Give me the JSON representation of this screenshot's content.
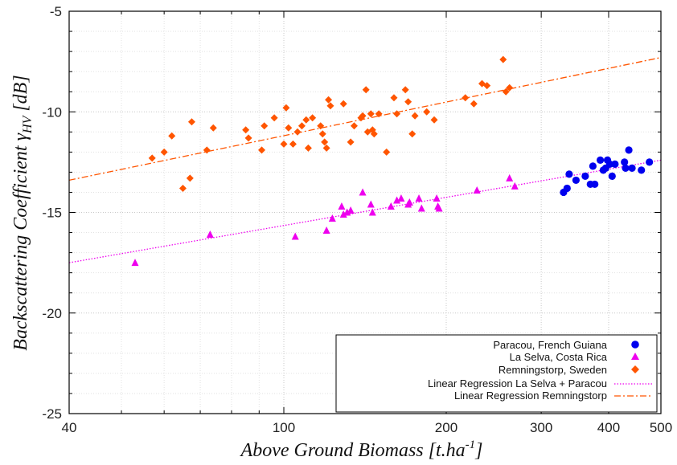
{
  "chart_data": {
    "type": "scatter",
    "x_scale": "log",
    "xlim": [
      40,
      500
    ],
    "ylim": [
      -25,
      -5
    ],
    "x_ticks": [
      40,
      100,
      200,
      300,
      400,
      500
    ],
    "x_tick_labels": [
      "40",
      "100",
      "200",
      "300",
      "400",
      "500"
    ],
    "y_ticks": [
      -25,
      -20,
      -15,
      -10,
      -5
    ],
    "y_tick_labels": [
      "-25",
      "-20",
      "-15",
      "-10",
      "-5"
    ],
    "xlabel": {
      "main": "Above Ground Biomass [t.ha",
      "sup": "-1",
      "end": "]"
    },
    "ylabel": {
      "main": "Backscattering Coefficient γ",
      "sub": "HV",
      "end": " [dB]"
    },
    "grid": true,
    "legend_position": "bottom-right",
    "series": [
      {
        "name": "Paracou, French Guiana",
        "marker": "circle",
        "color": "#0000ee",
        "points": [
          [
            330,
            -14
          ],
          [
            335,
            -13.8
          ],
          [
            338,
            -13.1
          ],
          [
            348,
            -13.4
          ],
          [
            362,
            -13.2
          ],
          [
            370,
            -13.6
          ],
          [
            374,
            -12.7
          ],
          [
            377,
            -13.6
          ],
          [
            386,
            -12.4
          ],
          [
            391,
            -12.9
          ],
          [
            395,
            -12.8
          ],
          [
            398,
            -12.4
          ],
          [
            402,
            -12.6
          ],
          [
            406,
            -13.2
          ],
          [
            411,
            -12.6
          ],
          [
            428,
            -12.5
          ],
          [
            430,
            -12.8
          ],
          [
            436,
            -11.9
          ],
          [
            442,
            -12.8
          ],
          [
            460,
            -12.9
          ],
          [
            476,
            -12.5
          ]
        ]
      },
      {
        "name": "La Selva, Costa Rica",
        "marker": "triangle",
        "color": "#ee00ee",
        "points": [
          [
            53,
            -17.5
          ],
          [
            73,
            -16.1
          ],
          [
            105,
            -16.2
          ],
          [
            120,
            -15.9
          ],
          [
            123,
            -15.3
          ],
          [
            128,
            -14.7
          ],
          [
            129,
            -15.1
          ],
          [
            131,
            -15
          ],
          [
            133,
            -14.9
          ],
          [
            140,
            -14
          ],
          [
            145,
            -14.6
          ],
          [
            146,
            -15
          ],
          [
            158,
            -14.7
          ],
          [
            162,
            -14.4
          ],
          [
            165,
            -14.3
          ],
          [
            170,
            -14.6
          ],
          [
            171,
            -14.5
          ],
          [
            178,
            -14.3
          ],
          [
            180,
            -14.8
          ],
          [
            192,
            -14.3
          ],
          [
            193,
            -14.7
          ],
          [
            194,
            -14.8
          ],
          [
            228,
            -13.9
          ],
          [
            262,
            -13.3
          ],
          [
            268,
            -13.7
          ]
        ]
      },
      {
        "name": "Remningstorp, Sweden",
        "marker": "diamond",
        "color": "#ff5500",
        "points": [
          [
            57,
            -12.3
          ],
          [
            60,
            -12
          ],
          [
            62,
            -11.2
          ],
          [
            65,
            -13.8
          ],
          [
            67,
            -13.3
          ],
          [
            67.5,
            -10.5
          ],
          [
            72,
            -11.9
          ],
          [
            74,
            -10.8
          ],
          [
            85,
            -10.9
          ],
          [
            86,
            -11.3
          ],
          [
            91,
            -11.9
          ],
          [
            92,
            -10.7
          ],
          [
            96,
            -10.3
          ],
          [
            100,
            -11.6
          ],
          [
            101,
            -9.8
          ],
          [
            102,
            -10.8
          ],
          [
            104,
            -11.6
          ],
          [
            106,
            -11
          ],
          [
            108,
            -10.7
          ],
          [
            110,
            -10.4
          ],
          [
            111,
            -11.8
          ],
          [
            113,
            -10.3
          ],
          [
            117,
            -10.7
          ],
          [
            118,
            -11.1
          ],
          [
            119,
            -11.5
          ],
          [
            120,
            -11.8
          ],
          [
            121,
            -9.4
          ],
          [
            122,
            -9.7
          ],
          [
            129,
            -9.6
          ],
          [
            133,
            -11.5
          ],
          [
            135,
            -10.7
          ],
          [
            139,
            -10.3
          ],
          [
            140,
            -10.2
          ],
          [
            142,
            -8.9
          ],
          [
            143,
            -11
          ],
          [
            145,
            -10.1
          ],
          [
            146,
            -10.9
          ],
          [
            147,
            -11.1
          ],
          [
            150,
            -10.1
          ],
          [
            155,
            -12
          ],
          [
            160,
            -9.3
          ],
          [
            162,
            -10.1
          ],
          [
            168,
            -8.9
          ],
          [
            170,
            -9.5
          ],
          [
            173,
            -11.1
          ],
          [
            175,
            -10.2
          ],
          [
            184,
            -10
          ],
          [
            190,
            -10.4
          ],
          [
            217,
            -9.3
          ],
          [
            225,
            -9.6
          ],
          [
            233,
            -8.6
          ],
          [
            238,
            -8.7
          ],
          [
            255,
            -7.4
          ],
          [
            258,
            -9
          ],
          [
            262,
            -8.8
          ]
        ]
      }
    ],
    "regression_lines": [
      {
        "name": "Linear Regression La Selva + Paracou",
        "color": "#ee00ee",
        "style": "dotted",
        "x": [
          40,
          500
        ],
        "y": [
          -17.5,
          -12.4
        ]
      },
      {
        "name": "Linear Regression Remningstorp",
        "color": "#ff5500",
        "style": "dash-dot",
        "x": [
          40,
          500
        ],
        "y": [
          -13.4,
          -7.3
        ]
      }
    ]
  }
}
